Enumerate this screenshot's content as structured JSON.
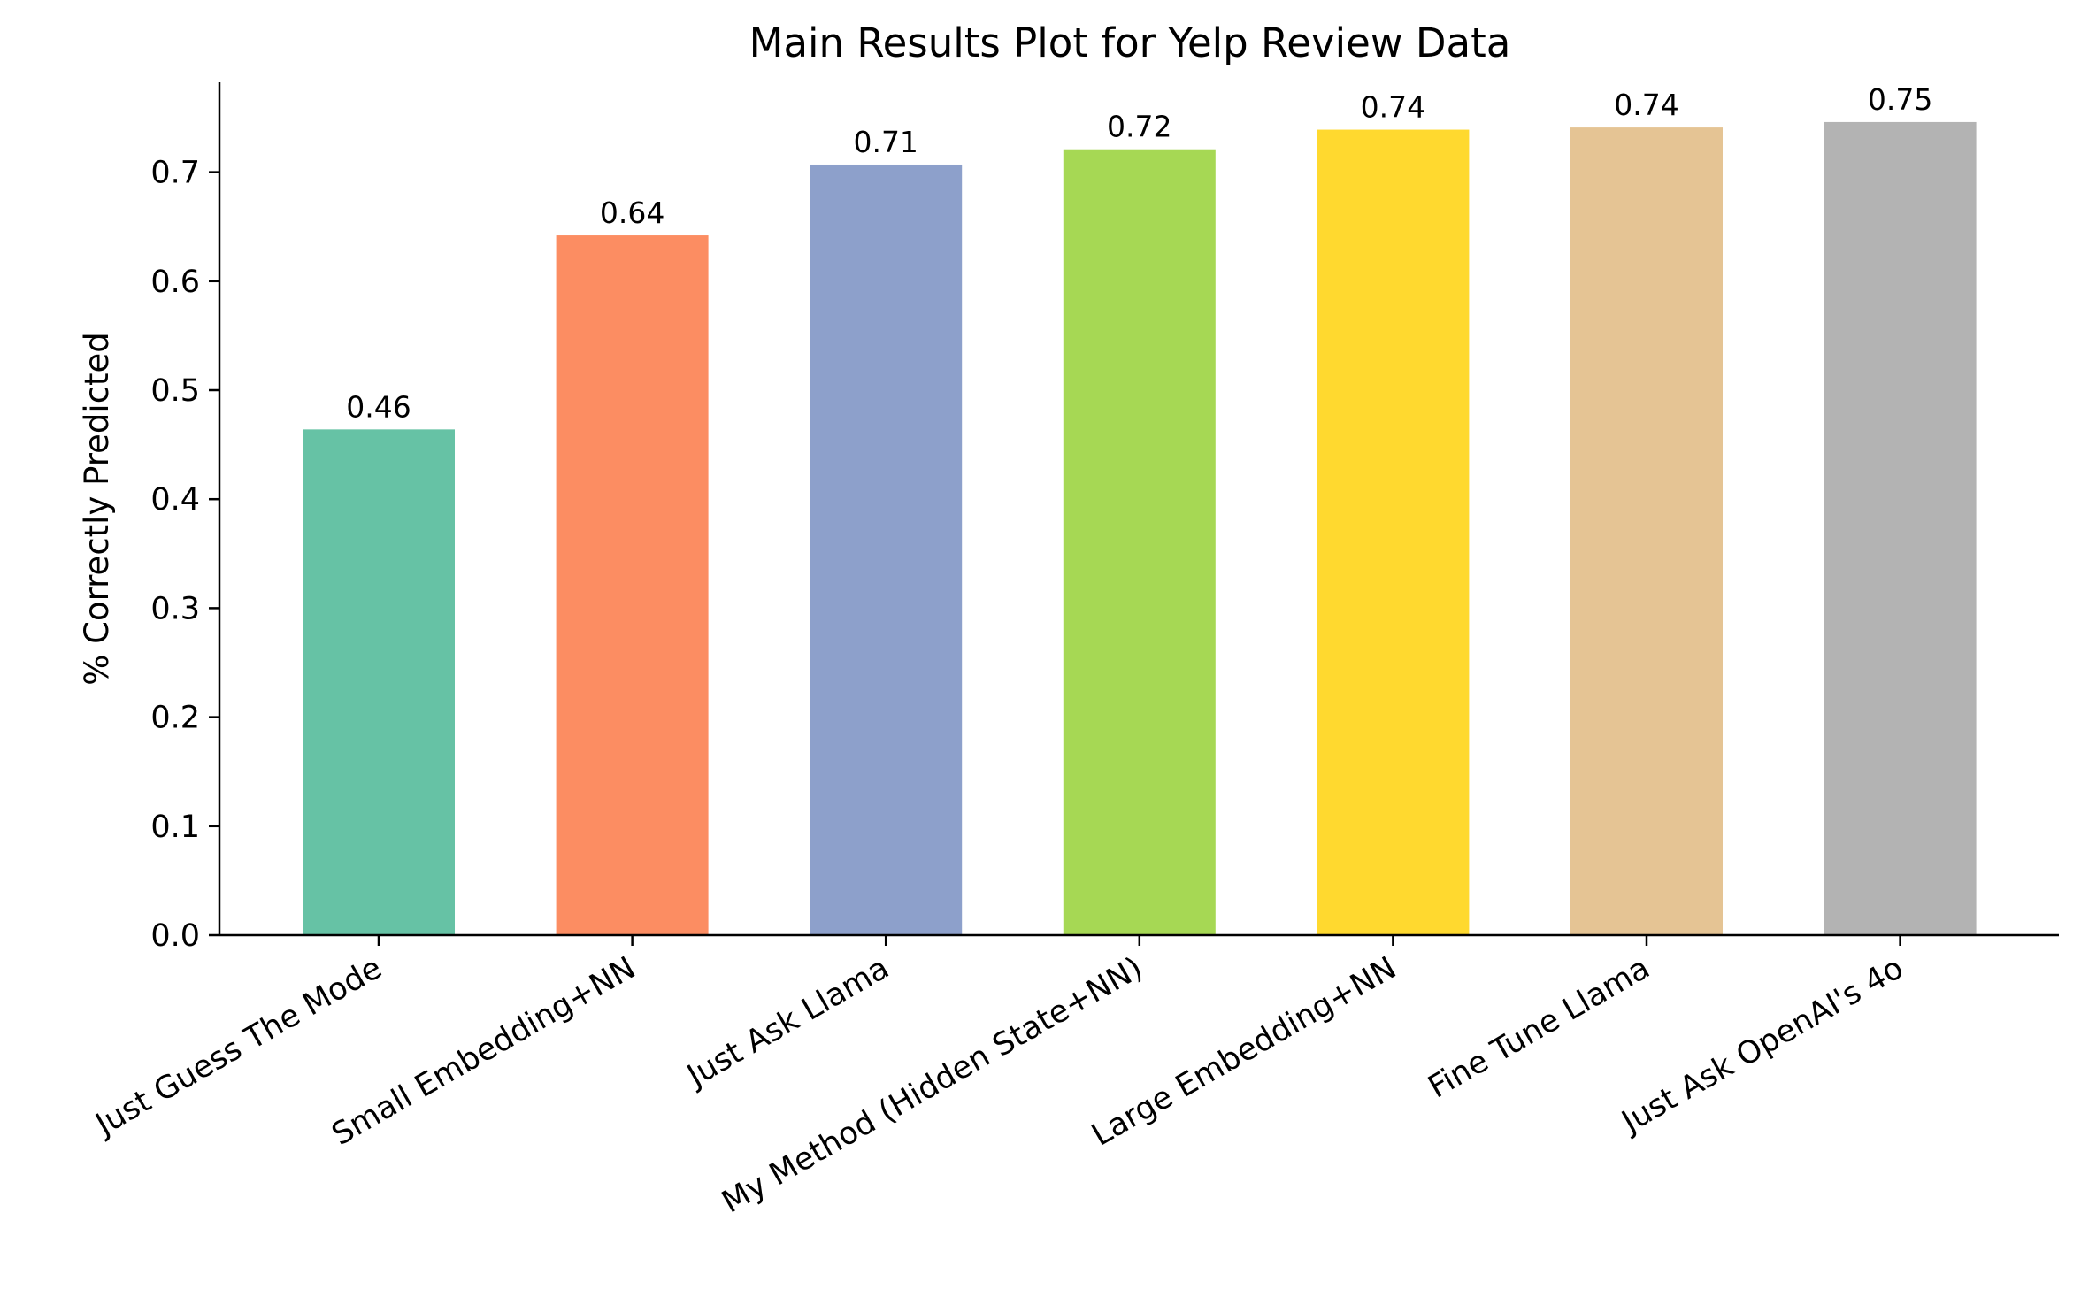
{
  "chart_data": {
    "type": "bar",
    "title": "Main Results Plot for Yelp Review Data",
    "xlabel": "",
    "ylabel": "% Correctly Predicted",
    "categories": [
      "Just Guess The Mode",
      "Small Embedding+NN",
      "Just Ask Llama",
      "My Method (Hidden State+NN)",
      "Large Embedding+NN",
      "Fine Tune Llama",
      "Just Ask OpenAI's 4o"
    ],
    "values": [
      0.464,
      0.642,
      0.707,
      0.721,
      0.739,
      0.741,
      0.746
    ],
    "data_labels": [
      "0.46",
      "0.64",
      "0.71",
      "0.72",
      "0.74",
      "0.74",
      "0.75"
    ],
    "colors": [
      "#66c2a5",
      "#fc8d62",
      "#8da0cb",
      "#a6d854",
      "#ffd92f",
      "#e5c494",
      "#b3b3b3"
    ],
    "yticks": [
      0.0,
      0.1,
      0.2,
      0.3,
      0.4,
      0.5,
      0.6,
      0.7
    ],
    "ytick_labels": [
      "0.0",
      "0.1",
      "0.2",
      "0.3",
      "0.4",
      "0.5",
      "0.6",
      "0.7"
    ],
    "ylim": [
      0,
      0.783
    ],
    "grid": false,
    "legend": "none"
  }
}
